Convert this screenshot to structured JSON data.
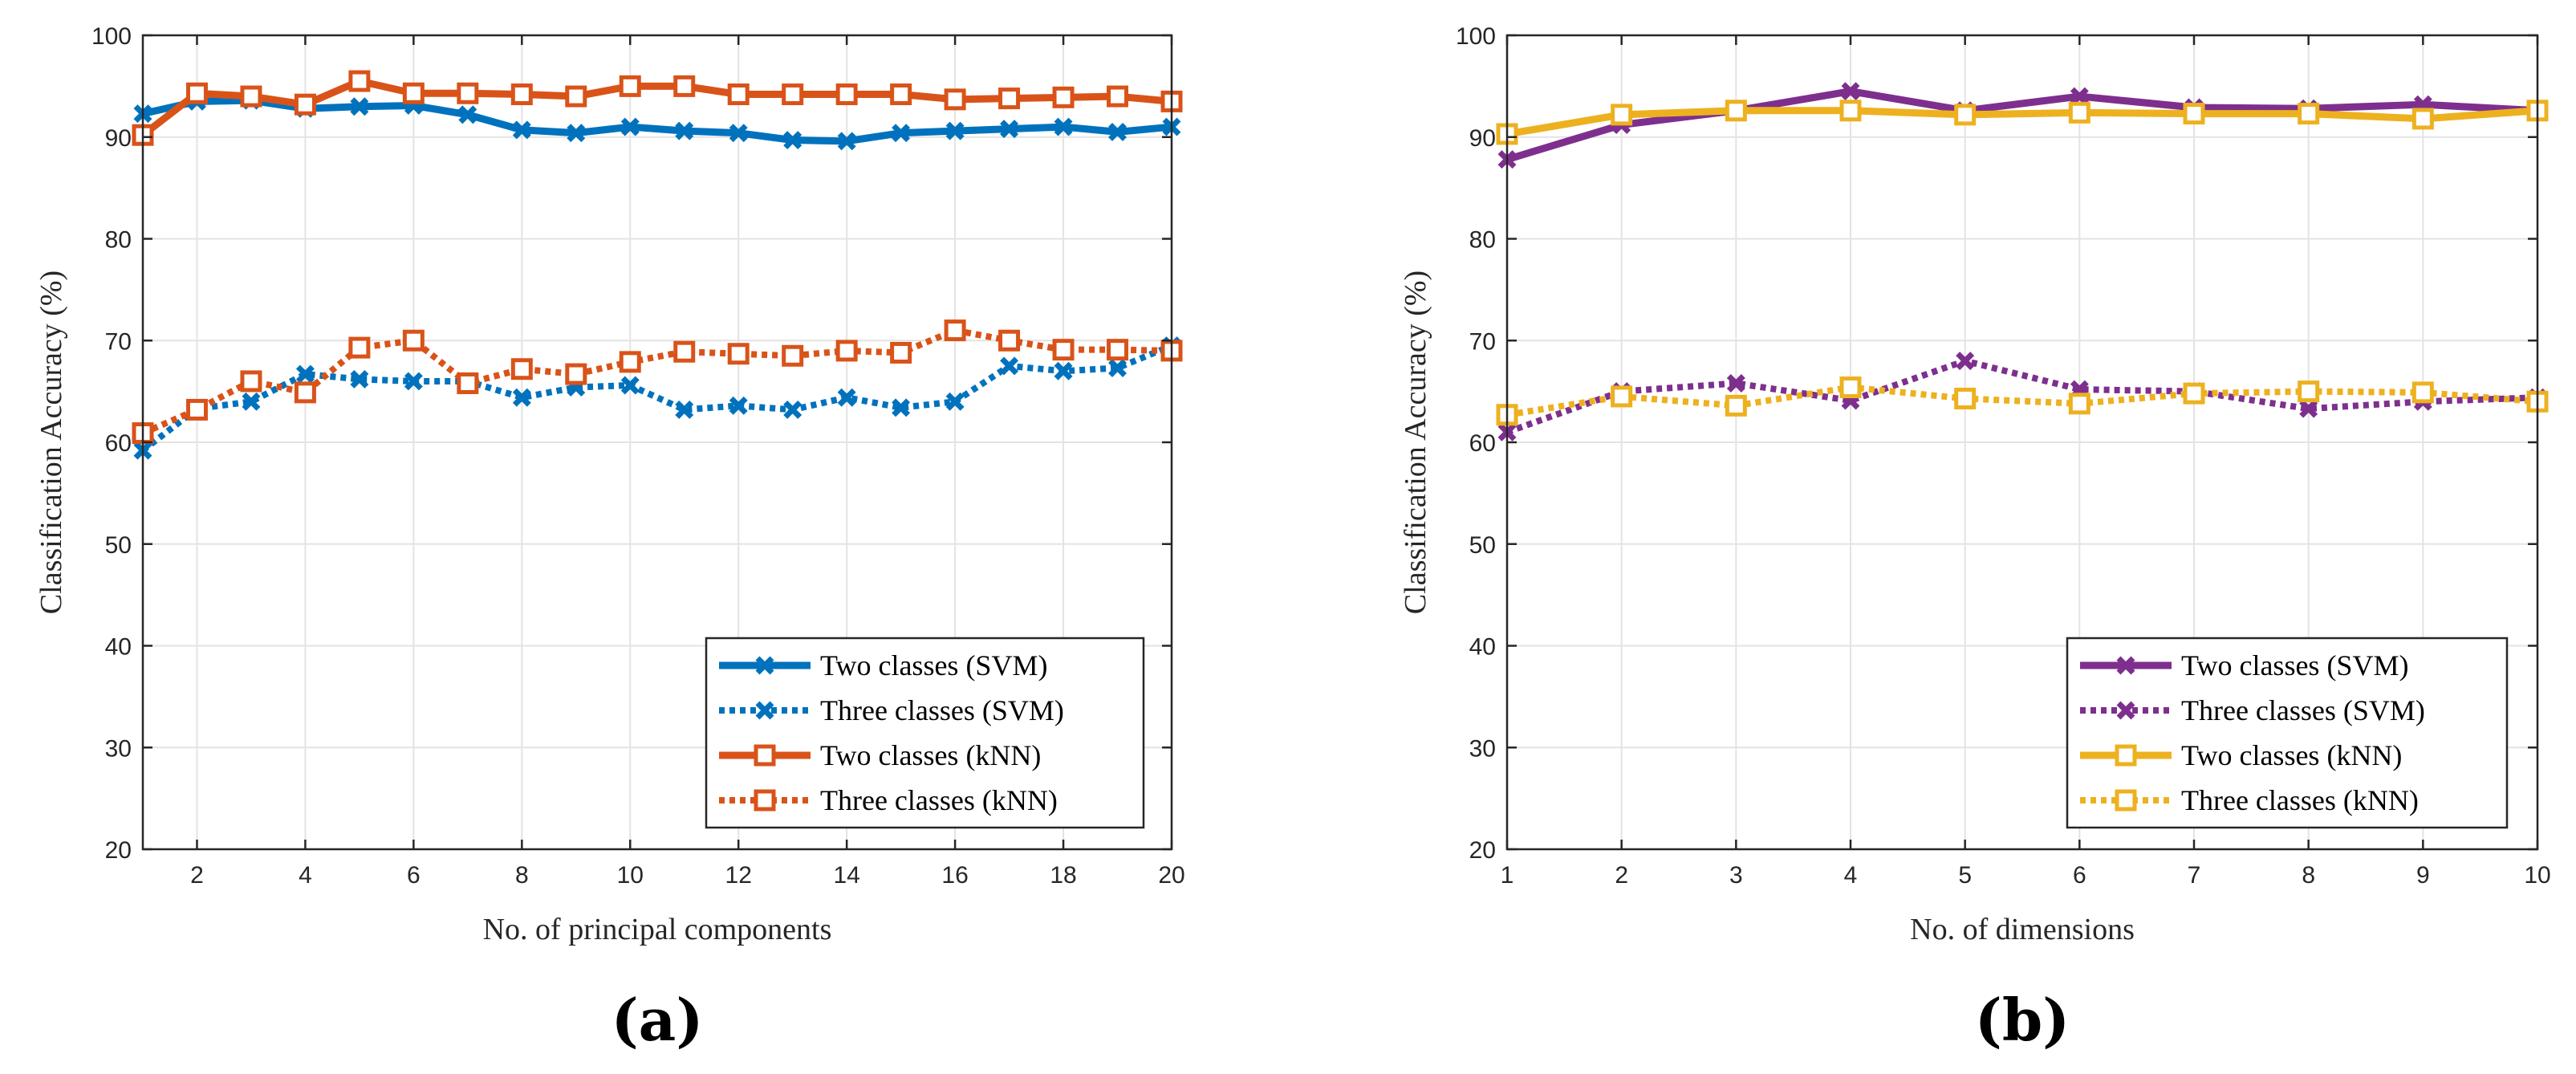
{
  "chart_data": [
    {
      "type": "line",
      "panel_label": "(a)",
      "title": "",
      "xlabel": "No. of principal components",
      "ylabel": "Classification Accuracy (%)",
      "xlim": [
        1,
        20
      ],
      "ylim": [
        20,
        100
      ],
      "xticks": [
        2,
        4,
        6,
        8,
        10,
        12,
        14,
        16,
        18,
        20
      ],
      "xtick_labels": [
        "2",
        "4",
        "6",
        "8",
        "10",
        "12",
        "14",
        "16",
        "18",
        "20"
      ],
      "yticks": [
        20,
        30,
        40,
        50,
        60,
        70,
        80,
        90,
        100
      ],
      "ytick_labels": [
        "20",
        "30",
        "40",
        "50",
        "60",
        "70",
        "80",
        "90",
        "100"
      ],
      "grid": true,
      "legend_position": "bottom-right",
      "x": [
        1,
        2,
        3,
        4,
        5,
        6,
        7,
        8,
        9,
        10,
        11,
        12,
        13,
        14,
        15,
        16,
        17,
        18,
        19,
        20
      ],
      "series": [
        {
          "name": "Two classes (SVM)",
          "color": "#0072BD",
          "linestyle": "solid",
          "marker": "x",
          "values": [
            92.3,
            93.5,
            93.6,
            92.8,
            93.0,
            93.1,
            92.2,
            90.7,
            90.4,
            91.0,
            90.6,
            90.4,
            89.7,
            89.6,
            90.4,
            90.6,
            90.8,
            91.0,
            90.5,
            91.0
          ]
        },
        {
          "name": "Three classes (SVM)",
          "color": "#0072BD",
          "linestyle": "dotted",
          "marker": "x",
          "values": [
            59.2,
            63.3,
            64.0,
            66.7,
            66.2,
            66.0,
            66.0,
            64.4,
            65.4,
            65.6,
            63.2,
            63.6,
            63.2,
            64.4,
            63.4,
            64.0,
            67.5,
            67.0,
            67.3,
            69.5
          ]
        },
        {
          "name": "Two classes (kNN)",
          "color": "#D95319",
          "linestyle": "solid",
          "marker": "square",
          "values": [
            90.2,
            94.3,
            94.0,
            93.2,
            95.5,
            94.3,
            94.3,
            94.2,
            94.0,
            95.0,
            95.0,
            94.2,
            94.2,
            94.2,
            94.2,
            93.7,
            93.8,
            93.9,
            94.0,
            93.5
          ]
        },
        {
          "name": "Three classes (kNN)",
          "color": "#D95319",
          "linestyle": "dotted",
          "marker": "square",
          "values": [
            60.9,
            63.2,
            66.0,
            64.9,
            69.3,
            70.0,
            65.8,
            67.2,
            66.7,
            67.9,
            68.9,
            68.7,
            68.5,
            69.0,
            68.8,
            71.0,
            70.0,
            69.1,
            69.1,
            69.0
          ]
        }
      ]
    },
    {
      "type": "line",
      "panel_label": "(b)",
      "title": "",
      "xlabel": "No. of dimensions",
      "ylabel": "Classification Accuracy (%)",
      "xlim": [
        1,
        10
      ],
      "ylim": [
        20,
        100
      ],
      "xticks": [
        1,
        2,
        3,
        4,
        5,
        6,
        7,
        8,
        9,
        10
      ],
      "xtick_labels": [
        "1",
        "2",
        "3",
        "4",
        "5",
        "6",
        "7",
        "8",
        "9",
        "10"
      ],
      "yticks": [
        20,
        30,
        40,
        50,
        60,
        70,
        80,
        90,
        100
      ],
      "ytick_labels": [
        "20",
        "30",
        "40",
        "50",
        "60",
        "70",
        "80",
        "90",
        "100"
      ],
      "grid": true,
      "legend_position": "bottom-right",
      "x": [
        1,
        2,
        3,
        4,
        5,
        6,
        7,
        8,
        9,
        10
      ],
      "series": [
        {
          "name": "Two classes (SVM)",
          "color": "#7E2F8E",
          "linestyle": "solid",
          "marker": "x",
          "values": [
            87.8,
            91.2,
            92.6,
            94.5,
            92.6,
            94.0,
            92.9,
            92.8,
            93.2,
            92.6
          ]
        },
        {
          "name": "Three classes (SVM)",
          "color": "#7E2F8E",
          "linestyle": "dotted",
          "marker": "x",
          "values": [
            61.0,
            65.0,
            65.8,
            64.1,
            68.0,
            65.2,
            65.0,
            63.3,
            64.0,
            64.4
          ]
        },
        {
          "name": "Two classes (kNN)",
          "color": "#EDB120",
          "linestyle": "solid",
          "marker": "square",
          "values": [
            90.3,
            92.2,
            92.6,
            92.6,
            92.2,
            92.4,
            92.3,
            92.3,
            91.8,
            92.6
          ]
        },
        {
          "name": "Three classes (kNN)",
          "color": "#EDB120",
          "linestyle": "dotted",
          "marker": "square",
          "values": [
            62.7,
            64.5,
            63.6,
            65.4,
            64.3,
            63.8,
            64.8,
            65.0,
            64.9,
            64.0
          ]
        }
      ]
    }
  ]
}
